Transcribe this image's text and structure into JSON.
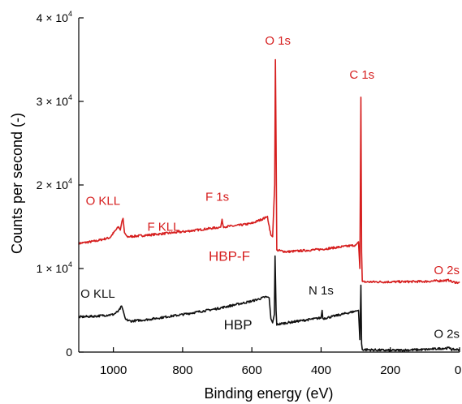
{
  "chart_data": {
    "type": "line",
    "xlabel": "Binding energy (eV)",
    "ylabel": "Counts per second (-)",
    "xlim": [
      1100,
      0
    ],
    "x_reversed": true,
    "ylim": [
      0,
      40000
    ],
    "xticks": [
      {
        "value": 1000,
        "label": "1000"
      },
      {
        "value": 800,
        "label": "800"
      },
      {
        "value": 600,
        "label": "600"
      },
      {
        "value": 400,
        "label": "400"
      },
      {
        "value": 200,
        "label": "200"
      },
      {
        "value": 0,
        "label": "0"
      }
    ],
    "yticks": [
      {
        "value": 0,
        "mant": "0",
        "exp": ""
      },
      {
        "value": 10000,
        "mant": "1 × 10",
        "exp": "4"
      },
      {
        "value": 20000,
        "mant": "2 × 10",
        "exp": "4"
      },
      {
        "value": 30000,
        "mant": "3 × 10",
        "exp": "4"
      },
      {
        "value": 40000,
        "mant": "4 × 10",
        "exp": "4"
      }
    ],
    "grid": false,
    "legend": "none",
    "series": [
      {
        "name": "HBP-F",
        "color": "#d61f1f",
        "points": [
          [
            1100,
            13000
          ],
          [
            1050,
            13300
          ],
          [
            1010,
            13700
          ],
          [
            995,
            14500
          ],
          [
            985,
            15000
          ],
          [
            980,
            14600
          ],
          [
            975,
            15700
          ],
          [
            972,
            16000
          ],
          [
            968,
            14300
          ],
          [
            960,
            13800
          ],
          [
            900,
            14000
          ],
          [
            800,
            14400
          ],
          [
            700,
            14900
          ],
          [
            690,
            14950
          ],
          [
            686,
            15900
          ],
          [
            683,
            15000
          ],
          [
            650,
            15100
          ],
          [
            600,
            15400
          ],
          [
            560,
            16100
          ],
          [
            555,
            16200
          ],
          [
            545,
            14000
          ],
          [
            540,
            13800
          ],
          [
            534,
            20000
          ],
          [
            532,
            35000
          ],
          [
            530,
            25000
          ],
          [
            528,
            12200
          ],
          [
            500,
            12000
          ],
          [
            400,
            12300
          ],
          [
            300,
            12800
          ],
          [
            292,
            13200
          ],
          [
            288,
            10000
          ],
          [
            285,
            30500
          ],
          [
            283,
            12000
          ],
          [
            281,
            8400
          ],
          [
            200,
            8400
          ],
          [
            100,
            8450
          ],
          [
            26,
            8600
          ],
          [
            24,
            8400
          ],
          [
            0,
            8300
          ]
        ]
      },
      {
        "name": "HBP",
        "color": "#111111",
        "points": [
          [
            1100,
            4200
          ],
          [
            1050,
            4300
          ],
          [
            1000,
            4500
          ],
          [
            985,
            4900
          ],
          [
            976,
            5500
          ],
          [
            972,
            5000
          ],
          [
            965,
            3900
          ],
          [
            950,
            3700
          ],
          [
            900,
            3900
          ],
          [
            800,
            4500
          ],
          [
            700,
            5200
          ],
          [
            600,
            6100
          ],
          [
            560,
            6600
          ],
          [
            550,
            6500
          ],
          [
            545,
            4000
          ],
          [
            540,
            3500
          ],
          [
            535,
            4500
          ],
          [
            533,
            11500
          ],
          [
            530,
            5000
          ],
          [
            528,
            3300
          ],
          [
            500,
            3500
          ],
          [
            450,
            3800
          ],
          [
            400,
            4100
          ],
          [
            397,
            5000
          ],
          [
            395,
            4000
          ],
          [
            300,
            4900
          ],
          [
            292,
            5000
          ],
          [
            288,
            1500
          ],
          [
            285,
            8000
          ],
          [
            283,
            1000
          ],
          [
            281,
            300
          ],
          [
            200,
            200
          ],
          [
            100,
            300
          ],
          [
            26,
            500
          ],
          [
            24,
            300
          ],
          [
            0,
            300
          ]
        ]
      }
    ],
    "annotations": [
      {
        "text": "O 1s",
        "x": 525,
        "y": 36800,
        "color": "#d61f1f",
        "style": "ann"
      },
      {
        "text": "C 1s",
        "x": 282,
        "y": 32700,
        "color": "#d61f1f",
        "style": "ann"
      },
      {
        "text": "O KLL",
        "x": 1030,
        "y": 17600,
        "color": "#d61f1f",
        "style": "ann"
      },
      {
        "text": "F 1s",
        "x": 700,
        "y": 18100,
        "color": "#d61f1f",
        "style": "ann"
      },
      {
        "text": "F KLL",
        "x": 855,
        "y": 14500,
        "color": "#d61f1f",
        "style": "ann"
      },
      {
        "text": "HBP-F",
        "x": 665,
        "y": 10900,
        "color": "#d61f1f",
        "style": "ann-big"
      },
      {
        "text": "O 2s",
        "x": 20,
        "y": 9300,
        "color": "#d61f1f",
        "style": "ann"
      },
      {
        "text": "O KLL",
        "x": 1045,
        "y": 6500,
        "color": "#111111",
        "style": "ann"
      },
      {
        "text": "N 1s",
        "x": 400,
        "y": 6900,
        "color": "#111111",
        "style": "ann"
      },
      {
        "text": "HBP",
        "x": 640,
        "y": 2700,
        "color": "#111111",
        "style": "ann-big"
      },
      {
        "text": "O 2s",
        "x": 30,
        "y": 1700,
        "color": "#111111",
        "style": "ann"
      }
    ]
  }
}
